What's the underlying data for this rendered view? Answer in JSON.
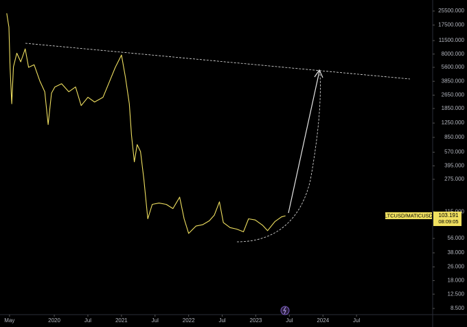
{
  "chart_data": {
    "type": "line",
    "log_scale": true,
    "x": [
      -0.5,
      -0.1,
      0.1,
      0.4,
      0.7,
      1.3,
      2.0,
      2.8,
      3.4,
      4.4,
      5.4,
      6.3,
      6.9,
      7.5,
      8.1,
      9.3,
      10.6,
      11.8,
      12.8,
      14.0,
      15.2,
      16.7,
      17.7,
      18.9,
      20.0,
      20.7,
      21.4,
      21.8,
      22.3,
      22.8,
      23.4,
      24.0,
      24.7,
      25.5,
      26.7,
      28.0,
      29.2,
      30.4,
      31.2,
      32.0,
      33.3,
      34.5,
      35.7,
      36.6,
      37.5,
      38.2,
      39.4,
      40.6,
      41.8,
      42.7,
      43.9,
      45.2,
      46.1,
      47.4,
      48.6,
      49.3
    ],
    "series": [
      {
        "name": "LTCUSD/MATICUSD",
        "color": "#f0e060",
        "values": [
          24000,
          16500,
          5500,
          2100,
          5700,
          8200,
          6500,
          9200,
          5600,
          6000,
          3900,
          2900,
          1200,
          2800,
          3300,
          3600,
          2900,
          3300,
          2000,
          2500,
          2200,
          2500,
          3600,
          5600,
          7800,
          4300,
          2100,
          900,
          440,
          700,
          580,
          275,
          95,
          140,
          145,
          140,
          125,
          170,
          95,
          64,
          78,
          81,
          90,
          105,
          150,
          86,
          75,
          72,
          67,
          95,
          92,
          80,
          69,
          88,
          100,
          103
        ]
      }
    ],
    "last_value": 103.191,
    "countdown": "08:09:05",
    "xlim": [
      -1.7,
      75.6
    ],
    "xticks": [
      {
        "value": 0,
        "label": "May"
      },
      {
        "value": 8,
        "label": "2020"
      },
      {
        "value": 14,
        "label": "Jul"
      },
      {
        "value": 20,
        "label": "2021"
      },
      {
        "value": 26,
        "label": "Jul"
      },
      {
        "value": 32,
        "label": "2022"
      },
      {
        "value": 38,
        "label": "Jul"
      },
      {
        "value": 44,
        "label": "2023"
      },
      {
        "value": 50,
        "label": "Jul"
      },
      {
        "value": 56,
        "label": "2024"
      },
      {
        "value": 62,
        "label": "Jul"
      }
    ],
    "ylim": [
      7.2,
      34300
    ],
    "yticks": [
      {
        "value": 25500,
        "label": "25500.000"
      },
      {
        "value": 17500,
        "label": "17500.000"
      },
      {
        "value": 11500,
        "label": "11500.000"
      },
      {
        "value": 8000,
        "label": "8000.000"
      },
      {
        "value": 5600,
        "label": "5600.000"
      },
      {
        "value": 3850,
        "label": "3850.000"
      },
      {
        "value": 2650,
        "label": "2650.000"
      },
      {
        "value": 1850,
        "label": "1850.000"
      },
      {
        "value": 1250,
        "label": "1250.000"
      },
      {
        "value": 850,
        "label": "850.000"
      },
      {
        "value": 570,
        "label": "570.000"
      },
      {
        "value": 395,
        "label": "395.000"
      },
      {
        "value": 275,
        "label": "275.000"
      },
      {
        "value": 115,
        "label": "115.000"
      },
      {
        "value": 56,
        "label": "56.000"
      },
      {
        "value": 38,
        "label": "38.000"
      },
      {
        "value": 26,
        "label": "26.000"
      },
      {
        "value": 18,
        "label": "18.000"
      },
      {
        "value": 12.5,
        "label": "12.500"
      },
      {
        "value": 8.5,
        "label": "8.500"
      }
    ]
  }
}
